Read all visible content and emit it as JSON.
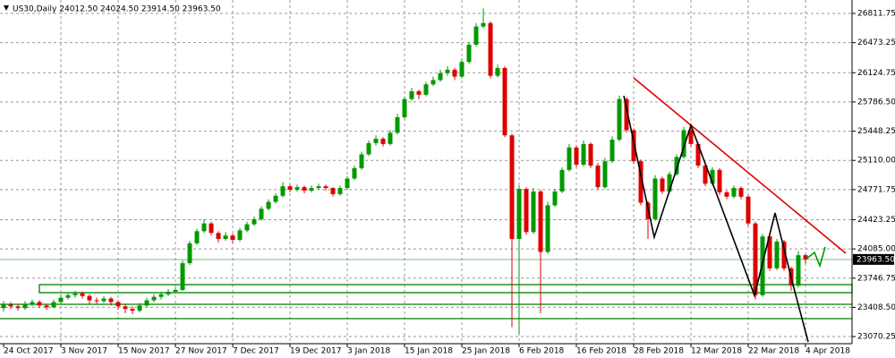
{
  "chart_data": {
    "type": "candlestick",
    "title": "US30,Daily  24012.50 24024.50 23914.50 23963.50",
    "categories": [
      "24 Oct 2017",
      null,
      null,
      null,
      null,
      null,
      null,
      null,
      "3 Nov 2017",
      null,
      null,
      null,
      null,
      null,
      null,
      null,
      "15 Nov 2017",
      null,
      null,
      null,
      null,
      null,
      null,
      null,
      "27 Nov 2017",
      null,
      null,
      null,
      null,
      null,
      null,
      null,
      "7 Dec 2017",
      null,
      null,
      null,
      null,
      null,
      null,
      null,
      "19 Dec 2017",
      null,
      null,
      null,
      null,
      null,
      null,
      null,
      "3 Jan 2018",
      null,
      null,
      null,
      null,
      null,
      null,
      null,
      "15 Jan 2018",
      null,
      null,
      null,
      null,
      null,
      null,
      null,
      "25 Jan 2018",
      null,
      null,
      null,
      null,
      null,
      null,
      null,
      "6 Feb 2018",
      null,
      null,
      null,
      null,
      null,
      null,
      null,
      "16 Feb 2018",
      null,
      null,
      null,
      null,
      null,
      null,
      null,
      "28 Feb 2018",
      null,
      null,
      null,
      null,
      null,
      null,
      null,
      "12 Mar 2018",
      null,
      null,
      null,
      null,
      null,
      null,
      null,
      "22 Mar 2018",
      null,
      null,
      null,
      null,
      null,
      null,
      null,
      "4 Apr 2018"
    ],
    "ohlc": [
      [
        23400,
        23480,
        23360,
        23440
      ],
      [
        23440,
        23470,
        23390,
        23420
      ],
      [
        23420,
        23440,
        23370,
        23400
      ],
      [
        23400,
        23480,
        23380,
        23450
      ],
      [
        23450,
        23500,
        23420,
        23470
      ],
      [
        23470,
        23490,
        23400,
        23430
      ],
      [
        23430,
        23450,
        23380,
        23410
      ],
      [
        23410,
        23500,
        23400,
        23470
      ],
      [
        23470,
        23560,
        23450,
        23520
      ],
      [
        23520,
        23580,
        23500,
        23550
      ],
      [
        23550,
        23600,
        23520,
        23570
      ],
      [
        23570,
        23590,
        23510,
        23540
      ],
      [
        23540,
        23560,
        23440,
        23490
      ],
      [
        23490,
        23520,
        23450,
        23480
      ],
      [
        23480,
        23540,
        23460,
        23510
      ],
      [
        23510,
        23530,
        23430,
        23470
      ],
      [
        23470,
        23490,
        23380,
        23420
      ],
      [
        23420,
        23450,
        23340,
        23390
      ],
      [
        23390,
        23420,
        23330,
        23370
      ],
      [
        23370,
        23460,
        23350,
        23430
      ],
      [
        23430,
        23520,
        23410,
        23490
      ],
      [
        23490,
        23560,
        23470,
        23530
      ],
      [
        23530,
        23590,
        23500,
        23560
      ],
      [
        23560,
        23620,
        23540,
        23590
      ],
      [
        23590,
        23640,
        23570,
        23610
      ],
      [
        23610,
        23950,
        23600,
        23920
      ],
      [
        23920,
        24180,
        23900,
        24150
      ],
      [
        24150,
        24320,
        24130,
        24290
      ],
      [
        24290,
        24430,
        24270,
        24380
      ],
      [
        24380,
        24400,
        24240,
        24270
      ],
      [
        24270,
        24290,
        24160,
        24200
      ],
      [
        24200,
        24280,
        24180,
        24240
      ],
      [
        24240,
        24260,
        24150,
        24190
      ],
      [
        24190,
        24330,
        24170,
        24300
      ],
      [
        24300,
        24400,
        24280,
        24370
      ],
      [
        24370,
        24460,
        24350,
        24430
      ],
      [
        24430,
        24580,
        24410,
        24550
      ],
      [
        24550,
        24660,
        24530,
        24630
      ],
      [
        24630,
        24730,
        24610,
        24700
      ],
      [
        24700,
        24860,
        24680,
        24810
      ],
      [
        24810,
        24830,
        24740,
        24770
      ],
      [
        24770,
        24830,
        24750,
        24800
      ],
      [
        24800,
        24820,
        24730,
        24760
      ],
      [
        24760,
        24820,
        24740,
        24790
      ],
      [
        24790,
        24840,
        24770,
        24810
      ],
      [
        24810,
        24830,
        24760,
        24790
      ],
      [
        24790,
        24800,
        24690,
        24720
      ],
      [
        24720,
        24820,
        24700,
        24790
      ],
      [
        24790,
        24930,
        24770,
        24900
      ],
      [
        24900,
        25050,
        24880,
        25020
      ],
      [
        25020,
        25210,
        25000,
        25180
      ],
      [
        25180,
        25340,
        25160,
        25310
      ],
      [
        25310,
        25400,
        25280,
        25360
      ],
      [
        25360,
        25380,
        25270,
        25300
      ],
      [
        25300,
        25460,
        25280,
        25430
      ],
      [
        25430,
        25650,
        25410,
        25610
      ],
      [
        25610,
        25850,
        25590,
        25820
      ],
      [
        25820,
        25950,
        25800,
        25910
      ],
      [
        25910,
        25930,
        25820,
        25870
      ],
      [
        25870,
        26020,
        25850,
        25990
      ],
      [
        25990,
        26080,
        25970,
        26040
      ],
      [
        26040,
        26160,
        26020,
        26120
      ],
      [
        26120,
        26200,
        26090,
        26160
      ],
      [
        26160,
        26180,
        26040,
        26080
      ],
      [
        26080,
        26290,
        26060,
        26250
      ],
      [
        26250,
        26480,
        26230,
        26450
      ],
      [
        26450,
        26700,
        26430,
        26660
      ],
      [
        26660,
        26870,
        26640,
        26700
      ],
      [
        26700,
        26720,
        26060,
        26090
      ],
      [
        26090,
        26220,
        26070,
        26180
      ],
      [
        26180,
        26200,
        25380,
        25400
      ],
      [
        25400,
        25420,
        23180,
        24200
      ],
      [
        24200,
        24820,
        23100,
        24780
      ],
      [
        24780,
        24800,
        24250,
        24280
      ],
      [
        24280,
        24790,
        24260,
        24750
      ],
      [
        24750,
        24770,
        23340,
        24050
      ],
      [
        24050,
        24630,
        24030,
        24590
      ],
      [
        24590,
        24780,
        24570,
        24750
      ],
      [
        24750,
        25030,
        24730,
        25000
      ],
      [
        25000,
        25300,
        24980,
        25260
      ],
      [
        25260,
        25280,
        25030,
        25060
      ],
      [
        25060,
        25340,
        25040,
        25300
      ],
      [
        25300,
        25320,
        25020,
        25050
      ],
      [
        25050,
        25080,
        24770,
        24800
      ],
      [
        24800,
        25140,
        24780,
        25100
      ],
      [
        25100,
        25390,
        25080,
        25350
      ],
      [
        25350,
        25860,
        25330,
        25820
      ],
      [
        25820,
        25840,
        25430,
        25460
      ],
      [
        25460,
        25480,
        25070,
        25100
      ],
      [
        25100,
        25120,
        24590,
        24620
      ],
      [
        24620,
        24640,
        24200,
        24430
      ],
      [
        24430,
        24940,
        24410,
        24900
      ],
      [
        24900,
        24920,
        24720,
        24750
      ],
      [
        24750,
        24980,
        24730,
        24950
      ],
      [
        24950,
        25180,
        24930,
        25150
      ],
      [
        25150,
        25500,
        25130,
        25460
      ],
      [
        25460,
        25480,
        25270,
        25300
      ],
      [
        25300,
        25320,
        25020,
        25050
      ],
      [
        25050,
        25070,
        24810,
        24840
      ],
      [
        24840,
        25030,
        24820,
        25000
      ],
      [
        25000,
        25020,
        24710,
        24740
      ],
      [
        24740,
        24760,
        24660,
        24690
      ],
      [
        24690,
        24820,
        24670,
        24790
      ],
      [
        24790,
        24810,
        24660,
        24690
      ],
      [
        24690,
        24710,
        24350,
        24380
      ],
      [
        24380,
        24400,
        23500,
        23550
      ],
      [
        23550,
        24260,
        23530,
        24230
      ],
      [
        24230,
        24250,
        23830,
        23860
      ],
      [
        23860,
        24200,
        23840,
        24170
      ],
      [
        24170,
        24190,
        23830,
        23860
      ],
      [
        23860,
        23880,
        23600,
        23660
      ],
      [
        23660,
        24060,
        23640,
        24012.5
      ],
      [
        24012.5,
        24024.5,
        23914.5,
        23963.5
      ]
    ],
    "up_color": "#009900",
    "down_color": "#dd0000",
    "ylim": [
      22988,
      26967
    ],
    "yticks": [
      {
        "value": 26811.75,
        "label": "26811.75"
      },
      {
        "value": 26473.25,
        "label": "26473.25"
      },
      {
        "value": 26124.75,
        "label": "26124.75"
      },
      {
        "value": 25786.5,
        "label": "25786.50"
      },
      {
        "value": 25448.25,
        "label": "25448.25"
      },
      {
        "value": 25110,
        "label": "25110.00"
      },
      {
        "value": 24771.75,
        "label": "24771.75"
      },
      {
        "value": 24423.25,
        "label": "24423.25"
      },
      {
        "value": 24085,
        "label": "24085.00"
      },
      {
        "value": 23746.75,
        "label": "23746.75"
      },
      {
        "value": 23408.5,
        "label": "23408.50"
      },
      {
        "value": 23070.25,
        "label": "23070.25"
      }
    ],
    "last_price": {
      "value": 23963.5,
      "label": "23963.50"
    },
    "grid": true
  }
}
